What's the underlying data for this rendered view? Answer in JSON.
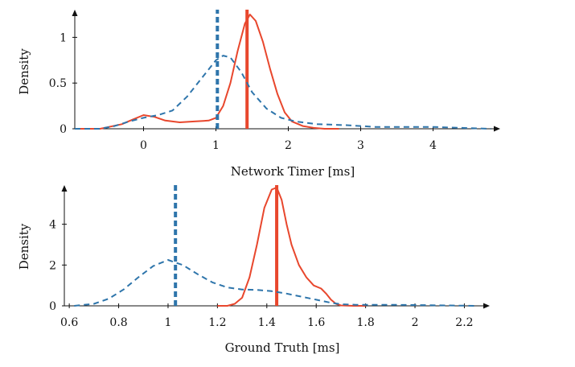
{
  "chart_data": [
    {
      "type": "line",
      "xlabel": "Network Timer [ms]",
      "ylabel": "Density",
      "xlim": [
        -0.95,
        4.85
      ],
      "ylim": [
        0,
        1.25
      ],
      "xticks": [
        0,
        1,
        2,
        3,
        4
      ],
      "yticks": [
        0,
        0.5,
        1
      ],
      "ytick_labels": [
        "0",
        "0.5",
        "1"
      ],
      "grid": false,
      "series": [
        {
          "style": "solid",
          "color": "#e8472d",
          "x": [
            -0.95,
            -0.6,
            -0.3,
            -0.15,
            0.0,
            0.15,
            0.3,
            0.5,
            0.7,
            0.9,
            1.0,
            1.1,
            1.2,
            1.3,
            1.4,
            1.47,
            1.55,
            1.65,
            1.75,
            1.85,
            1.95,
            2.05,
            2.2,
            2.35,
            2.5,
            2.7
          ],
          "y": [
            0.0,
            0.0,
            0.05,
            0.1,
            0.15,
            0.13,
            0.09,
            0.07,
            0.08,
            0.09,
            0.12,
            0.25,
            0.5,
            0.85,
            1.15,
            1.25,
            1.18,
            0.95,
            0.65,
            0.38,
            0.18,
            0.08,
            0.03,
            0.01,
            0.0,
            0.0
          ],
          "median": 1.43
        },
        {
          "style": "dashed",
          "color": "#2e75ab",
          "x": [
            -0.95,
            -0.6,
            -0.4,
            -0.2,
            0.0,
            0.2,
            0.4,
            0.6,
            0.8,
            1.0,
            1.1,
            1.2,
            1.35,
            1.5,
            1.7,
            1.9,
            2.1,
            2.4,
            2.8,
            3.2,
            3.6,
            4.0,
            4.4,
            4.8
          ],
          "y": [
            0.0,
            0.0,
            0.03,
            0.08,
            0.12,
            0.15,
            0.2,
            0.35,
            0.55,
            0.75,
            0.8,
            0.78,
            0.62,
            0.4,
            0.22,
            0.12,
            0.08,
            0.05,
            0.04,
            0.02,
            0.02,
            0.02,
            0.01,
            0.0
          ],
          "median": 1.02
        }
      ]
    },
    {
      "type": "line",
      "xlabel": "Ground Truth [ms]",
      "ylabel": "Density",
      "xlim": [
        0.58,
        2.28
      ],
      "ylim": [
        0,
        5.8
      ],
      "xticks": [
        0.6,
        0.8,
        1,
        1.2,
        1.4,
        1.6,
        1.8,
        2,
        2.2
      ],
      "xtick_labels": [
        "0.6",
        "0.8",
        "1",
        "1.2",
        "1.4",
        "1.6",
        "1.8",
        "2",
        "2.2"
      ],
      "yticks": [
        0,
        2,
        4
      ],
      "ytick_labels": [
        "0",
        "2",
        "4"
      ],
      "grid": false,
      "series": [
        {
          "style": "solid",
          "color": "#e8472d",
          "x": [
            1.2,
            1.24,
            1.27,
            1.3,
            1.33,
            1.36,
            1.39,
            1.42,
            1.44,
            1.46,
            1.48,
            1.5,
            1.53,
            1.56,
            1.59,
            1.62,
            1.64,
            1.66,
            1.68,
            1.7,
            1.75,
            1.8
          ],
          "y": [
            0.0,
            0.0,
            0.1,
            0.4,
            1.4,
            3.0,
            4.8,
            5.7,
            5.8,
            5.2,
            4.0,
            3.0,
            2.0,
            1.4,
            1.0,
            0.85,
            0.6,
            0.3,
            0.1,
            0.02,
            0.0,
            0.0
          ],
          "median": 1.44
        },
        {
          "style": "dashed",
          "color": "#2e75ab",
          "x": [
            0.62,
            0.7,
            0.76,
            0.82,
            0.88,
            0.94,
            1.0,
            1.06,
            1.12,
            1.18,
            1.24,
            1.3,
            1.36,
            1.42,
            1.48,
            1.54,
            1.6,
            1.66,
            1.7,
            1.76,
            1.9,
            2.05,
            2.25
          ],
          "y": [
            0.0,
            0.1,
            0.35,
            0.8,
            1.4,
            1.95,
            2.25,
            2.0,
            1.55,
            1.15,
            0.9,
            0.8,
            0.78,
            0.72,
            0.6,
            0.45,
            0.3,
            0.15,
            0.08,
            0.05,
            0.05,
            0.03,
            0.0
          ],
          "median": 1.03
        }
      ]
    }
  ]
}
